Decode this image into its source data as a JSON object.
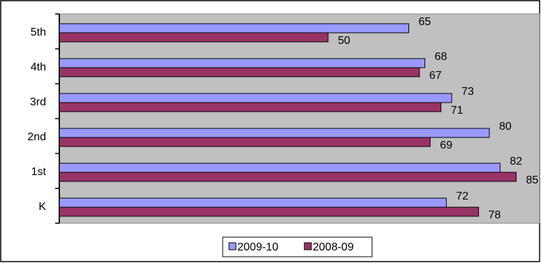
{
  "chart_data": {
    "type": "bar",
    "orientation": "horizontal",
    "categories": [
      "5th",
      "4th",
      "3rd",
      "2nd",
      "1st",
      "K"
    ],
    "series": [
      {
        "name": "2009-10",
        "values": [
          65,
          68,
          73,
          80,
          82,
          72
        ],
        "color": "#9999ff"
      },
      {
        "name": "2008-09",
        "values": [
          50,
          67,
          71,
          69,
          85,
          78
        ],
        "color": "#993366"
      }
    ],
    "xlim": [
      0,
      100
    ],
    "grid": false,
    "legend_position": "bottom",
    "plot_background": "#c0c0c0",
    "data_labels": true
  }
}
